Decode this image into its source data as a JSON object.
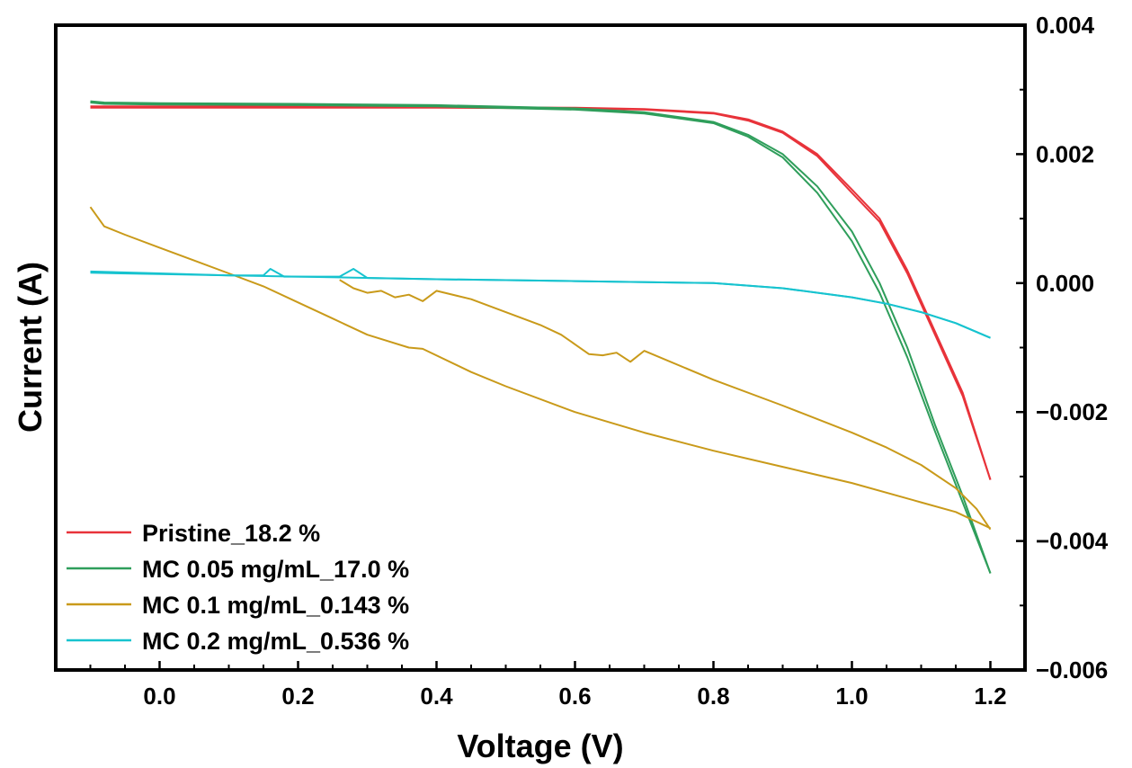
{
  "chart_data": {
    "type": "line",
    "xlabel": "Voltage (V)",
    "ylabel": "Current (A)",
    "xlim": [
      -0.15,
      1.25
    ],
    "ylim": [
      -0.006,
      0.004
    ],
    "x_ticks": [
      0.0,
      0.2,
      0.4,
      0.6,
      0.8,
      1.0,
      1.2
    ],
    "x_tick_labels": [
      "0.0",
      "0.2",
      "0.4",
      "0.6",
      "0.8",
      "1.0",
      "1.2"
    ],
    "y_ticks": [
      0.004,
      0.002,
      0.0,
      -0.002,
      -0.004,
      -0.006
    ],
    "y_tick_labels": [
      "0.004",
      "0.002",
      "0.000",
      "−0.002",
      "−0.004",
      "−0.006"
    ],
    "y_axis_side": "right",
    "legend_position": "bottom-left",
    "grid": false,
    "series": [
      {
        "name": "Pristine_18.2 %",
        "color": "#e8333a",
        "traces": [
          {
            "x": [
              -0.1,
              0.0,
              0.2,
              0.4,
              0.6,
              0.7,
              0.8,
              0.85,
              0.9,
              0.95,
              1.0,
              1.04,
              1.08,
              1.12,
              1.16,
              1.2
            ],
            "y": [
              0.00274,
              0.00274,
              0.00274,
              0.00273,
              0.00272,
              0.0027,
              0.00264,
              0.00254,
              0.00235,
              0.002,
              0.00145,
              0.001,
              0.0002,
              -0.00075,
              -0.0017,
              -0.00305
            ]
          },
          {
            "x": [
              -0.1,
              0.0,
              0.2,
              0.4,
              0.6,
              0.7,
              0.8,
              0.85,
              0.9,
              0.95,
              1.0,
              1.04,
              1.08,
              1.12,
              1.16,
              1.2
            ],
            "y": [
              0.00272,
              0.00272,
              0.00272,
              0.00272,
              0.00271,
              0.00269,
              0.00263,
              0.00252,
              0.00233,
              0.00197,
              0.0014,
              0.00095,
              0.00015,
              -0.0008,
              -0.00175,
              -0.00305
            ]
          }
        ]
      },
      {
        "name": "MC 0.05 mg/mL_17.0 %",
        "color": "#2f9e5b",
        "traces": [
          {
            "x": [
              -0.1,
              -0.08,
              0.0,
              0.2,
              0.4,
              0.6,
              0.7,
              0.8,
              0.85,
              0.9,
              0.95,
              1.0,
              1.04,
              1.08,
              1.12,
              1.16,
              1.2
            ],
            "y": [
              0.00282,
              0.0028,
              0.00279,
              0.00278,
              0.00276,
              0.00271,
              0.00265,
              0.0025,
              0.0023,
              0.002,
              0.0015,
              0.0008,
              0.0,
              -0.001,
              -0.0022,
              -0.0033,
              -0.0045
            ]
          },
          {
            "x": [
              -0.1,
              -0.08,
              0.0,
              0.2,
              0.4,
              0.6,
              0.7,
              0.8,
              0.85,
              0.9,
              0.95,
              1.0,
              1.04,
              1.08,
              1.12,
              1.16,
              1.2
            ],
            "y": [
              0.0028,
              0.00278,
              0.00277,
              0.00276,
              0.00274,
              0.00269,
              0.00263,
              0.00248,
              0.00227,
              0.00195,
              0.0014,
              0.00065,
              -0.00015,
              -0.00115,
              -0.0023,
              -0.0034,
              -0.0045
            ]
          }
        ]
      },
      {
        "name": "MC 0.1 mg/mL_0.143 %",
        "color": "#c99a1a",
        "traces": [
          {
            "x": [
              -0.1,
              -0.08,
              -0.05,
              0.0,
              0.05,
              0.1,
              0.15,
              0.2,
              0.25,
              0.3,
              0.36,
              0.38,
              0.45,
              0.5,
              0.6,
              0.7,
              0.8,
              0.9,
              1.0,
              1.1,
              1.15,
              1.2
            ],
            "y": [
              0.00118,
              0.00088,
              0.00075,
              0.00055,
              0.00035,
              0.00015,
              -5e-05,
              -0.0003,
              -0.00055,
              -0.0008,
              -0.001,
              -0.00102,
              -0.00138,
              -0.0016,
              -0.002,
              -0.00232,
              -0.0026,
              -0.00285,
              -0.0031,
              -0.0034,
              -0.00355,
              -0.0038
            ]
          },
          {
            "x": [
              0.26,
              0.28,
              0.3,
              0.32,
              0.34,
              0.36,
              0.38,
              0.4,
              0.45,
              0.5,
              0.55,
              0.58,
              0.6,
              0.62,
              0.64,
              0.66,
              0.68,
              0.7,
              0.8,
              0.9,
              1.0,
              1.05,
              1.1,
              1.15,
              1.18,
              1.2
            ],
            "y": [
              5e-05,
              -8e-05,
              -0.00015,
              -0.00012,
              -0.00022,
              -0.00018,
              -0.00028,
              -0.00012,
              -0.00025,
              -0.00045,
              -0.00065,
              -0.0008,
              -0.00095,
              -0.0011,
              -0.00112,
              -0.00108,
              -0.00122,
              -0.00105,
              -0.0015,
              -0.0019,
              -0.00232,
              -0.00255,
              -0.00282,
              -0.00318,
              -0.0035,
              -0.00382
            ]
          }
        ]
      },
      {
        "name": "MC 0.2 mg/mL_0.536 %",
        "color": "#17c3cf",
        "traces": [
          {
            "x": [
              -0.1,
              0.0,
              0.1,
              0.15,
              0.16,
              0.18,
              0.26,
              0.28,
              0.3,
              0.4,
              0.6,
              0.8,
              0.9,
              1.0,
              1.05,
              1.1,
              1.15,
              1.2
            ],
            "y": [
              0.00018,
              0.00015,
              0.00012,
              0.00012,
              0.00022,
              0.0001,
              0.0001,
              0.00022,
              8e-05,
              6e-05,
              3e-05,
              0.0,
              -8e-05,
              -0.00022,
              -0.00032,
              -0.00045,
              -0.00062,
              -0.00085
            ]
          },
          {
            "x": [
              -0.1,
              0.0,
              0.2,
              0.4,
              0.6,
              0.8,
              0.9,
              1.0,
              1.05,
              1.1,
              1.15,
              1.2
            ],
            "y": [
              0.00016,
              0.00014,
              0.0001,
              6e-05,
              3e-05,
              0.0,
              -8e-05,
              -0.00022,
              -0.00032,
              -0.00045,
              -0.00062,
              -0.00085
            ]
          }
        ]
      }
    ]
  }
}
